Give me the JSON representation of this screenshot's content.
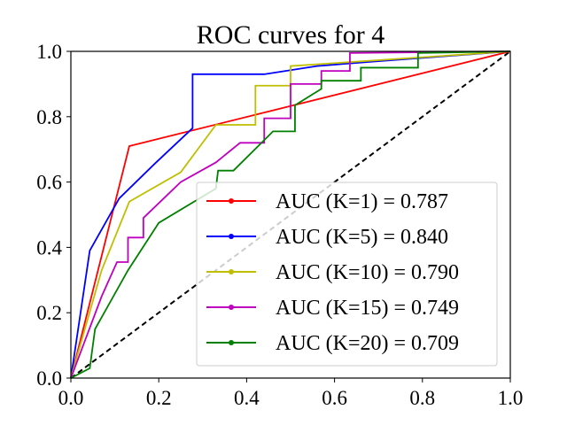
{
  "chart_data": {
    "type": "line",
    "title": "ROC curves for 4",
    "xlabel": "",
    "ylabel": "",
    "xlim": [
      0.0,
      1.0
    ],
    "ylim": [
      0.0,
      1.0
    ],
    "xticks": [
      "0.0",
      "0.2",
      "0.4",
      "0.6",
      "0.8",
      "1.0"
    ],
    "yticks": [
      "0.0",
      "0.2",
      "0.4",
      "0.6",
      "0.8",
      "1.0"
    ],
    "grid": false,
    "legend_position": "lower-right",
    "diagonal": {
      "style": "dashed",
      "color": "#000000",
      "points": [
        [
          0,
          0
        ],
        [
          1,
          1
        ]
      ]
    },
    "series": [
      {
        "name": "AUC (K=1) = 0.787",
        "color": "#ff0000",
        "points": [
          [
            0,
            0
          ],
          [
            0.133,
            0.71
          ],
          [
            1.0,
            1.0
          ]
        ]
      },
      {
        "name": "AUC (K=5) = 0.840",
        "color": "#0000ff",
        "points": [
          [
            0,
            0
          ],
          [
            0.043,
            0.39
          ],
          [
            0.11,
            0.55
          ],
          [
            0.19,
            0.655
          ],
          [
            0.277,
            0.765
          ],
          [
            0.277,
            0.93
          ],
          [
            0.44,
            0.93
          ],
          [
            0.56,
            0.955
          ],
          [
            0.7,
            0.97
          ],
          [
            1.0,
            1.0
          ]
        ]
      },
      {
        "name": "AUC (K=10) = 0.790",
        "color": "#bfbf00",
        "points": [
          [
            0,
            0
          ],
          [
            0.07,
            0.33
          ],
          [
            0.133,
            0.54
          ],
          [
            0.25,
            0.63
          ],
          [
            0.33,
            0.775
          ],
          [
            0.42,
            0.775
          ],
          [
            0.42,
            0.895
          ],
          [
            0.5,
            0.895
          ],
          [
            0.5,
            0.955
          ],
          [
            1.0,
            1.0
          ]
        ]
      },
      {
        "name": "AUC (K=15) = 0.749",
        "color": "#bf00bf",
        "points": [
          [
            0,
            0
          ],
          [
            0.07,
            0.25
          ],
          [
            0.105,
            0.355
          ],
          [
            0.13,
            0.355
          ],
          [
            0.13,
            0.43
          ],
          [
            0.165,
            0.43
          ],
          [
            0.165,
            0.49
          ],
          [
            0.25,
            0.6
          ],
          [
            0.33,
            0.66
          ],
          [
            0.385,
            0.72
          ],
          [
            0.44,
            0.72
          ],
          [
            0.44,
            0.795
          ],
          [
            0.5,
            0.795
          ],
          [
            0.5,
            0.9
          ],
          [
            0.57,
            0.9
          ],
          [
            0.57,
            0.94
          ],
          [
            0.635,
            0.94
          ],
          [
            0.635,
            0.995
          ],
          [
            1.0,
            1.0
          ]
        ]
      },
      {
        "name": "AUC (K=20) = 0.709",
        "color": "#008000",
        "points": [
          [
            0,
            0
          ],
          [
            0.043,
            0.03
          ],
          [
            0.055,
            0.15
          ],
          [
            0.13,
            0.33
          ],
          [
            0.2,
            0.475
          ],
          [
            0.33,
            0.58
          ],
          [
            0.335,
            0.635
          ],
          [
            0.37,
            0.635
          ],
          [
            0.46,
            0.755
          ],
          [
            0.51,
            0.755
          ],
          [
            0.51,
            0.835
          ],
          [
            0.57,
            0.885
          ],
          [
            0.57,
            0.91
          ],
          [
            0.66,
            0.91
          ],
          [
            0.66,
            0.95
          ],
          [
            0.79,
            0.95
          ],
          [
            0.79,
            0.995
          ],
          [
            1.0,
            1.0
          ]
        ]
      }
    ]
  }
}
